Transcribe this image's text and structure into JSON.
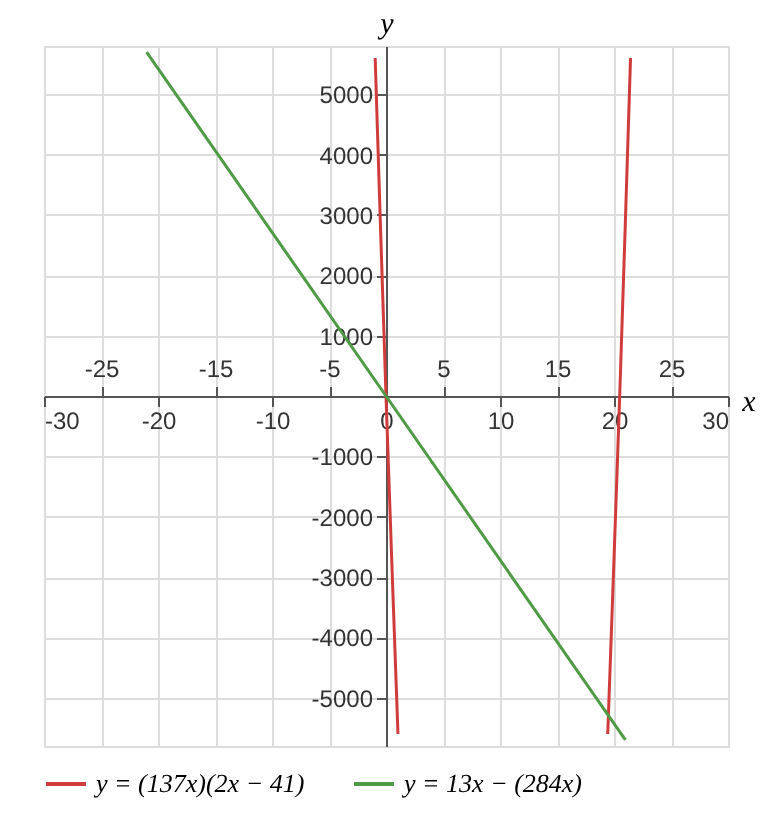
{
  "chart_data": {
    "type": "line",
    "xlabel": "x",
    "ylabel": "y",
    "xlim": [
      -30,
      30
    ],
    "ylim": [
      -5800,
      5800
    ],
    "xticks": [
      -30,
      -20,
      -10,
      0,
      10,
      20,
      30
    ],
    "x2lim": [
      -30,
      30
    ],
    "x2ticks": [
      -25,
      -15,
      -5,
      5,
      15,
      25
    ],
    "yticks": [
      -5000,
      -4000,
      -3000,
      -2000,
      -1000,
      1000,
      2000,
      3000,
      4000,
      5000
    ],
    "grid": true,
    "legend": "bottom",
    "line_style": "solid",
    "marker": "none",
    "series": [
      {
        "name": "y = (137x)(2x − 41)",
        "color": "#d03c3c",
        "x": [
          -0.95,
          -0.5,
          0,
          0.5,
          1.05,
          10,
          19.45,
          20,
          20.5,
          21,
          21.45
        ],
        "values": [
          5600,
          2900,
          0,
          -2700,
          -5600,
          null,
          -5600,
          -2700,
          0,
          2900,
          5600
        ]
      },
      {
        "name": "y = 13x − (284x)",
        "color": "#4f9a45",
        "x": [
          -21,
          0,
          21
        ],
        "values": [
          5700,
          0,
          -5700
        ]
      }
    ]
  }
}
